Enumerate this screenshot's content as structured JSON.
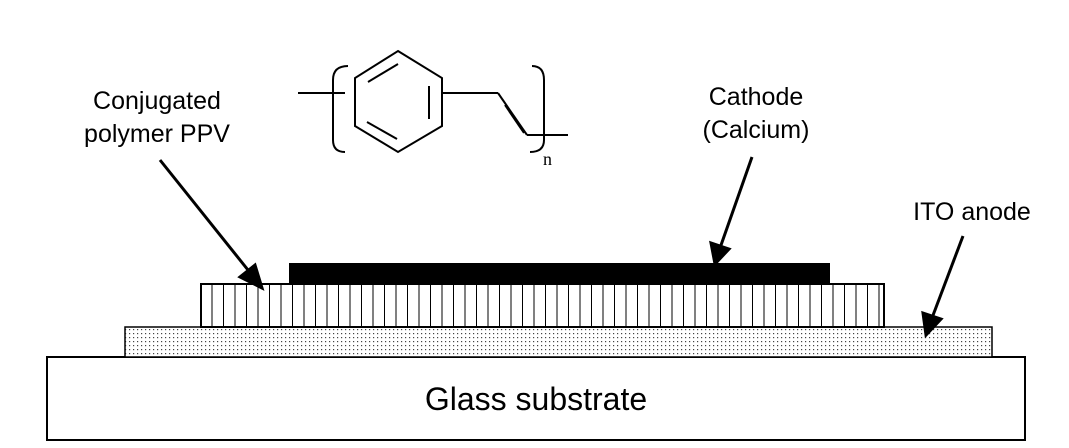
{
  "labels": {
    "polymer_line1": "Conjugated",
    "polymer_line2": "polymer PPV",
    "cathode_line1": "Cathode",
    "cathode_line2": "(Calcium)",
    "anode": "ITO anode",
    "substrate": "Glass substrate"
  },
  "structure": {
    "subscript": "n"
  },
  "layers": [
    {
      "name": "Glass substrate",
      "fill": "#ffffff"
    },
    {
      "name": "ITO anode",
      "fill": "dotted"
    },
    {
      "name": "Conjugated polymer PPV",
      "fill": "vertical-hatch"
    },
    {
      "name": "Cathode (Calcium)",
      "fill": "#000000"
    }
  ]
}
